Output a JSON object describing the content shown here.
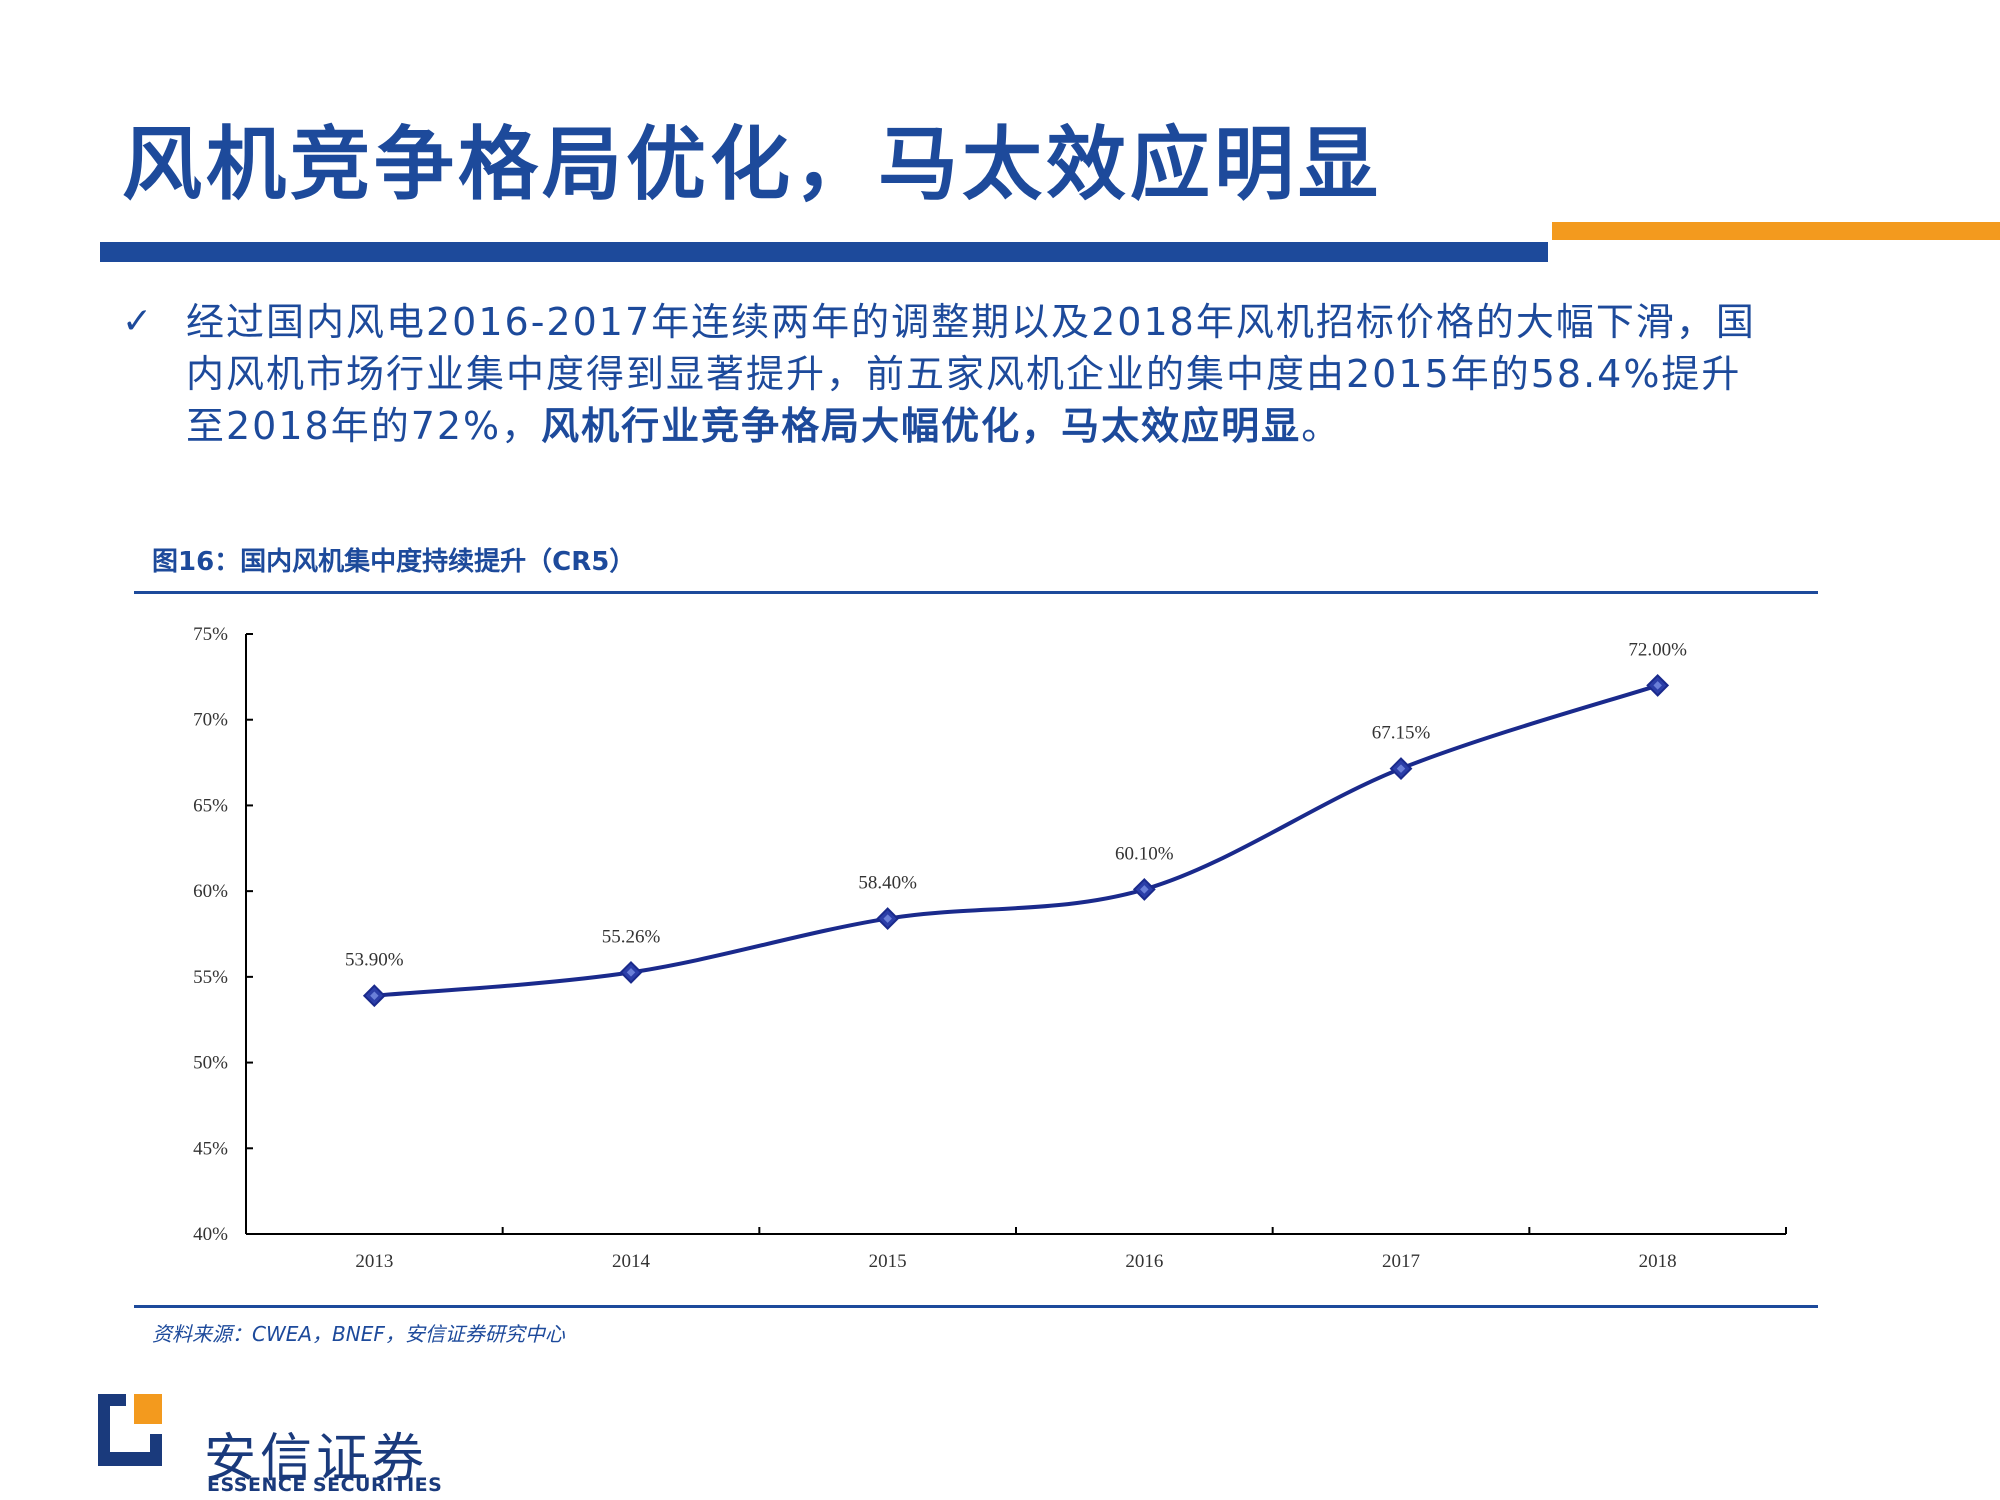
{
  "slide": {
    "title": "风机竞争格局优化，马太效应明显",
    "bullet_check": "✓",
    "bullet_line1": "经过国内风电2016-2017年连续两年的调整期以及2018年风机招标价格的大幅下滑，国",
    "bullet_line2": "内风机市场行业集中度得到显著提升，前五家风机企业的集中度由2015年的58.4%提升",
    "bullet_line3_normal": "至2018年的72%，",
    "bullet_line3_bold": "风机行业竞争格局大幅优化，马太效应明显",
    "bullet_line3_end": "。",
    "figure_caption": "图16：国内风机集中度持续提升（CR5）",
    "source": "资料来源：CWEA，BNEF，安信证券研究中心"
  },
  "logo": {
    "cn": "安信证券",
    "en": "ESSENCE SECURITIES"
  },
  "colors": {
    "brand_blue": "#1d4a9b",
    "accent_orange": "#f39a1e",
    "line": "#1a2a8c"
  },
  "chart_data": {
    "type": "line",
    "categories": [
      "2013",
      "2014",
      "2015",
      "2016",
      "2017",
      "2018"
    ],
    "series": [
      {
        "values": [
          53.9,
          55.26,
          58.4,
          60.1,
          67.15,
          72.0
        ],
        "labels": [
          "53.90%",
          "55.26%",
          "58.40%",
          "60.10%",
          "67.15%",
          "72.00%"
        ]
      }
    ],
    "ylim": [
      40,
      75
    ],
    "yticks": [
      40,
      45,
      50,
      55,
      60,
      65,
      70,
      75
    ],
    "ytick_labels": [
      "40%",
      "45%",
      "50%",
      "55%",
      "60%",
      "65%",
      "70%",
      "75%"
    ],
    "smooth": true,
    "marker": "diamond",
    "grid": false,
    "legend": "none"
  }
}
